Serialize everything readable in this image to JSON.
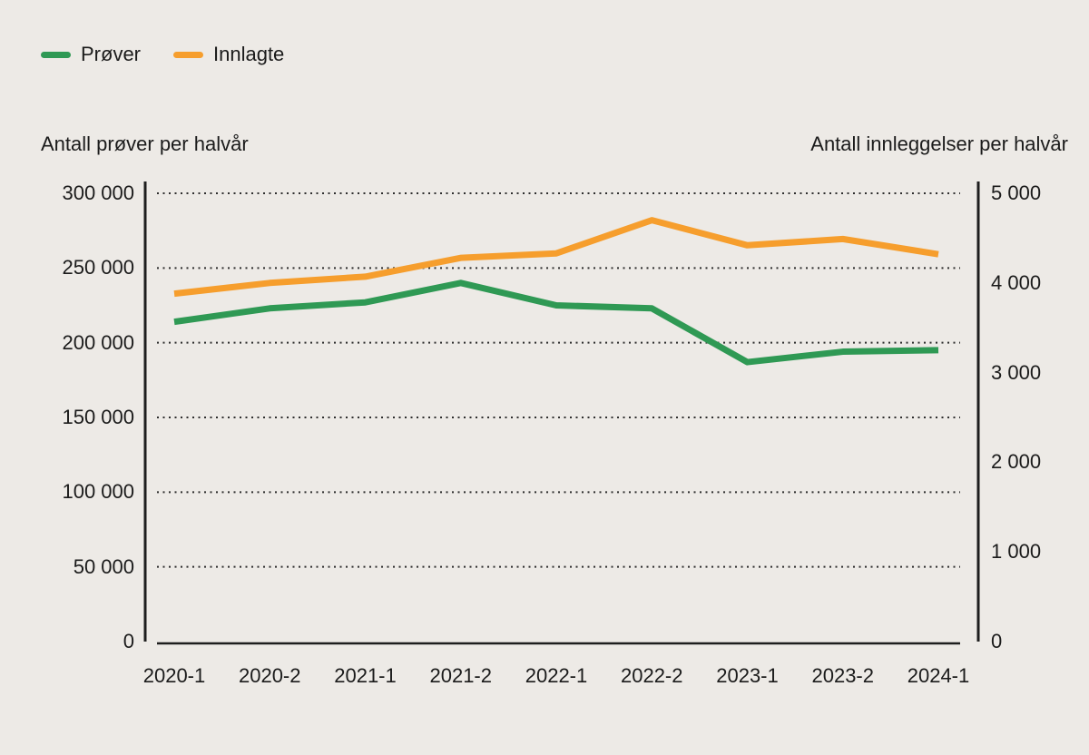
{
  "colors": {
    "background": "#edeae6",
    "text": "#1b1b1b",
    "axis_line": "#1e1e1e",
    "gridline": "#2e2e2e",
    "prover_green": "#2F9954",
    "innlagte_orange": "#F69E2D"
  },
  "legend": {
    "items": [
      {
        "label": "Prøver",
        "color": "#2F9954"
      },
      {
        "label": "Innlagte",
        "color": "#F69E2D"
      }
    ]
  },
  "chart_data": {
    "type": "line",
    "categories": [
      "2020-1",
      "2020-2",
      "2021-1",
      "2021-2",
      "2022-1",
      "2022-2",
      "2023-1",
      "2023-2",
      "2024-1"
    ],
    "series": [
      {
        "name": "Prøver",
        "axis": "left",
        "color": "#2F9954",
        "values": [
          214000,
          223000,
          227000,
          240000,
          225000,
          223000,
          187000,
          194000,
          195000
        ]
      },
      {
        "name": "Innlagte",
        "axis": "right",
        "color": "#F69E2D",
        "values": [
          3880,
          4000,
          4070,
          4280,
          4330,
          4700,
          4420,
          4490,
          4320
        ]
      }
    ],
    "left_axis": {
      "title": "Antall prøver per halvår",
      "min": 0,
      "max": 300000,
      "tick_labels": [
        "0",
        "50 000",
        "100 000",
        "150 000",
        "200 000",
        "250 000",
        "300 000"
      ]
    },
    "right_axis": {
      "title": "Antall innleggelser per halvår",
      "min": 0,
      "max": 5000,
      "tick_labels": [
        "0",
        "1 000",
        "2 000",
        "3 000",
        "4 000",
        "5 000"
      ]
    },
    "grid": "horizontal-dotted",
    "legend_position": "top-left"
  }
}
